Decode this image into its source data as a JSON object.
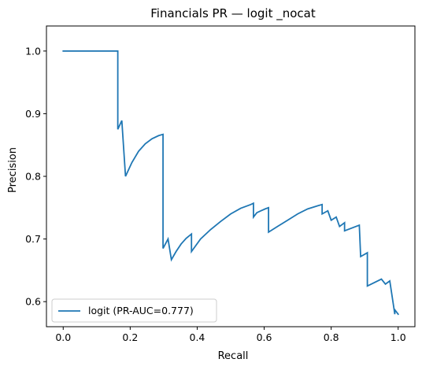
{
  "chart_data": {
    "type": "line",
    "title": "Financials PR — logit _nocat",
    "xlabel": "Recall",
    "ylabel": "Precision",
    "xlim": [
      -0.05,
      1.05
    ],
    "ylim": [
      0.56,
      1.04
    ],
    "x_ticks": [
      0.0,
      0.2,
      0.4,
      0.6,
      0.8,
      1.0
    ],
    "x_tick_labels": [
      "0.0",
      "0.2",
      "0.4",
      "0.6",
      "0.8",
      "1.0"
    ],
    "y_ticks": [
      0.6,
      0.7,
      0.8,
      0.9,
      1.0
    ],
    "y_tick_labels": [
      "0.6",
      "0.7",
      "0.8",
      "0.9",
      "1.0"
    ],
    "grid": false,
    "legend_position": "lower-left",
    "series": [
      {
        "name": "logit (PR-AUC=0.777)",
        "color": "#1f77b4",
        "x": [
          0.0,
          0.163,
          0.163,
          0.175,
          0.175,
          0.186,
          0.186,
          0.205,
          0.225,
          0.245,
          0.265,
          0.285,
          0.298,
          0.298,
          0.313,
          0.313,
          0.323,
          0.323,
          0.337,
          0.352,
          0.367,
          0.383,
          0.383,
          0.41,
          0.44,
          0.47,
          0.5,
          0.53,
          0.56,
          0.568,
          0.568,
          0.578,
          0.59,
          0.603,
          0.613,
          0.613,
          0.64,
          0.67,
          0.7,
          0.73,
          0.76,
          0.773,
          0.773,
          0.79,
          0.79,
          0.8,
          0.8,
          0.815,
          0.815,
          0.825,
          0.825,
          0.84,
          0.84,
          0.884,
          0.884,
          0.888,
          0.888,
          0.908,
          0.908,
          0.95,
          0.95,
          0.962,
          0.962,
          0.975,
          0.975,
          0.99,
          0.99,
          1.0
        ],
        "y": [
          1.0,
          1.0,
          0.875,
          0.889,
          0.889,
          0.8,
          0.8,
          0.822,
          0.84,
          0.852,
          0.86,
          0.865,
          0.867,
          0.685,
          0.7,
          0.7,
          0.667,
          0.667,
          0.68,
          0.692,
          0.701,
          0.708,
          0.68,
          0.7,
          0.715,
          0.728,
          0.74,
          0.749,
          0.755,
          0.757,
          0.735,
          0.742,
          0.745,
          0.748,
          0.75,
          0.711,
          0.72,
          0.73,
          0.74,
          0.748,
          0.753,
          0.755,
          0.74,
          0.745,
          0.745,
          0.73,
          0.73,
          0.735,
          0.735,
          0.72,
          0.72,
          0.726,
          0.713,
          0.722,
          0.722,
          0.672,
          0.672,
          0.678,
          0.625,
          0.636,
          0.636,
          0.628,
          0.628,
          0.633,
          0.633,
          0.58,
          0.587,
          0.58
        ]
      }
    ]
  }
}
